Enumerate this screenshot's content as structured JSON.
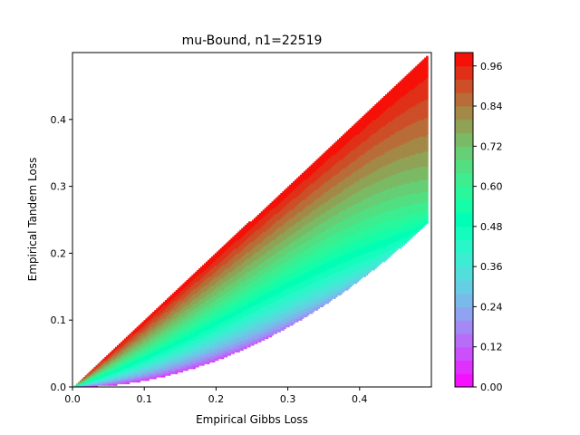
{
  "chart_data": {
    "type": "contour",
    "title": "mu-Bound, n1=22519",
    "xlabel": "Empirical Gibbs Loss",
    "ylabel": "Empirical Tandem Loss",
    "xlim": [
      0,
      0.5
    ],
    "ylim": [
      0,
      0.5
    ],
    "x_ticks": [
      "0.0",
      "0.1",
      "0.2",
      "0.3",
      "0.4"
    ],
    "y_ticks": [
      "0.0",
      "0.1",
      "0.2",
      "0.3",
      "0.4"
    ],
    "x_tick_values": [
      0,
      0.1,
      0.2,
      0.3,
      0.4
    ],
    "y_tick_values": [
      0,
      0.1,
      0.2,
      0.3,
      0.4
    ],
    "region": "x^2 <= y <= x, 0 <= x <= 0.5",
    "colorbar": {
      "range": [
        0,
        1
      ],
      "ticks": [
        "0.00",
        "0.12",
        "0.24",
        "0.36",
        "0.48",
        "0.60",
        "0.72",
        "0.84",
        "0.96"
      ],
      "tick_values": [
        0,
        0.12,
        0.24,
        0.36,
        0.48,
        0.6,
        0.72,
        0.84,
        0.96
      ],
      "levels": 25,
      "colormap": "rainbow"
    },
    "grid": false
  }
}
